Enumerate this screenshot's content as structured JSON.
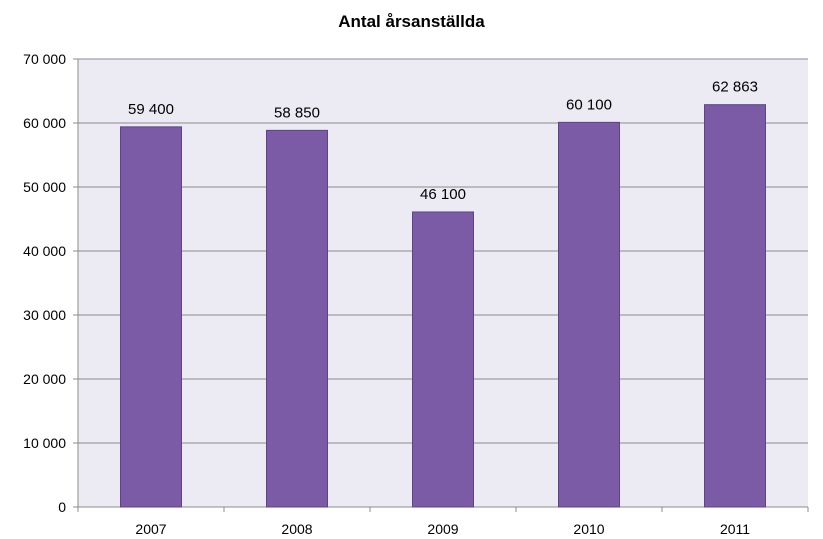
{
  "chart_data": {
    "type": "bar",
    "title": "Antal årsanställda",
    "xlabel": "",
    "ylabel": "",
    "categories": [
      "2007",
      "2008",
      "2009",
      "2010",
      "2011"
    ],
    "values": [
      59400,
      58850,
      46100,
      60100,
      62863
    ],
    "value_labels": [
      "59 400",
      "58 850",
      "46 100",
      "60 100",
      "62 863"
    ],
    "ylim": [
      0,
      70000
    ],
    "y_ticks": [
      0,
      10000,
      20000,
      30000,
      40000,
      50000,
      60000,
      70000
    ],
    "y_tick_labels": [
      "0",
      "10 000",
      "20 000",
      "30 000",
      "40 000",
      "50 000",
      "60 000",
      "70 000"
    ],
    "grid": true,
    "legend": "none",
    "colors": {
      "bar": "#7b5aa6",
      "bar_edge": "#5e4389",
      "plot_background": "#ecebf4",
      "gridline": "#8c8c8c",
      "axis": "#8c8c8c"
    }
  }
}
